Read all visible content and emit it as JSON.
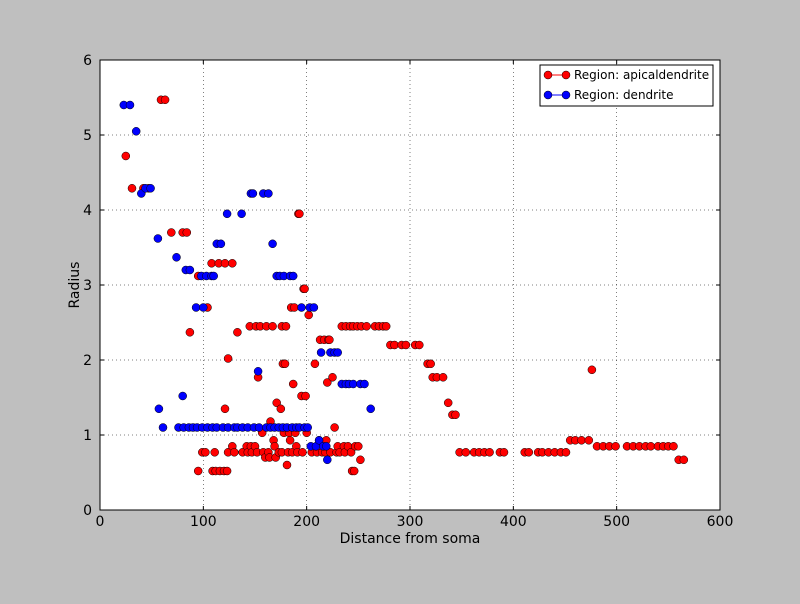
{
  "colors": {
    "figure_background": "#bfbfbf",
    "axes_background": "#ffffff",
    "apical_series": "#ff0000",
    "dendrite_series": "#0000ff",
    "marker_edge": "#000000"
  },
  "chart_data": {
    "type": "scatter",
    "title": "",
    "xlabel": "Distance from soma",
    "ylabel": "Radius",
    "xlim": [
      0,
      600
    ],
    "ylim": [
      0,
      6
    ],
    "xticks": [
      0,
      100,
      200,
      300,
      400,
      500,
      600
    ],
    "yticks": [
      0,
      1,
      2,
      3,
      4,
      5,
      6
    ],
    "grid": true,
    "legend_position": "top-right",
    "series": [
      {
        "name": "Region: apicaldendrite",
        "color": "#ff0000",
        "points": [
          [
            25,
            4.72
          ],
          [
            31,
            4.29
          ],
          [
            42,
            4.29
          ],
          [
            47,
            4.29
          ],
          [
            59,
            5.47
          ],
          [
            63,
            5.47
          ],
          [
            69,
            3.7
          ],
          [
            80,
            3.7
          ],
          [
            84,
            3.7
          ],
          [
            87,
            2.37
          ],
          [
            95,
            3.12
          ],
          [
            95,
            0.52
          ],
          [
            99,
            0.77
          ],
          [
            102,
            0.77
          ],
          [
            104,
            2.7
          ],
          [
            108,
            3.29
          ],
          [
            109,
            0.52
          ],
          [
            111,
            0.77
          ],
          [
            112,
            0.52
          ],
          [
            115,
            3.29
          ],
          [
            116,
            0.52
          ],
          [
            120,
            0.52
          ],
          [
            121,
            3.29
          ],
          [
            121,
            1.35
          ],
          [
            123,
            0.52
          ],
          [
            124,
            0.77
          ],
          [
            124,
            2.02
          ],
          [
            128,
            3.29
          ],
          [
            128,
            0.85
          ],
          [
            130,
            0.77
          ],
          [
            133,
            2.37
          ],
          [
            138,
            0.77
          ],
          [
            142,
            0.85
          ],
          [
            143,
            0.77
          ],
          [
            145,
            2.45
          ],
          [
            146,
            0.85
          ],
          [
            147,
            0.77
          ],
          [
            150,
            0.85
          ],
          [
            151,
            2.45
          ],
          [
            152,
            0.77
          ],
          [
            153,
            1.77
          ],
          [
            155,
            2.45
          ],
          [
            157,
            1.03
          ],
          [
            158,
            0.77
          ],
          [
            160,
            0.7
          ],
          [
            161,
            2.45
          ],
          [
            163,
            0.77
          ],
          [
            164,
            0.7
          ],
          [
            165,
            1.18
          ],
          [
            167,
            2.45
          ],
          [
            168,
            0.93
          ],
          [
            169,
            0.85
          ],
          [
            170,
            0.7
          ],
          [
            171,
            1.43
          ],
          [
            173,
            0.77
          ],
          [
            175,
            1.35
          ],
          [
            176,
            2.45
          ],
          [
            176,
            0.77
          ],
          [
            177,
            1.95
          ],
          [
            178,
            1.03
          ],
          [
            179,
            1.95
          ],
          [
            180,
            2.45
          ],
          [
            181,
            0.6
          ],
          [
            182,
            0.77
          ],
          [
            183,
            1.03
          ],
          [
            184,
            0.93
          ],
          [
            185,
            2.7
          ],
          [
            186,
            0.77
          ],
          [
            187,
            1.68
          ],
          [
            188,
            2.7
          ],
          [
            189,
            1.03
          ],
          [
            190,
            0.85
          ],
          [
            191,
            0.77
          ],
          [
            192,
            3.95
          ],
          [
            193,
            3.95
          ],
          [
            195,
            1.52
          ],
          [
            196,
            0.77
          ],
          [
            197,
            2.95
          ],
          [
            198,
            2.95
          ],
          [
            199,
            1.52
          ],
          [
            200,
            1.03
          ],
          [
            202,
            2.6
          ],
          [
            205,
            0.77
          ],
          [
            208,
            1.95
          ],
          [
            210,
            0.77
          ],
          [
            212,
            0.93
          ],
          [
            213,
            2.27
          ],
          [
            215,
            0.77
          ],
          [
            216,
            0.85
          ],
          [
            217,
            2.27
          ],
          [
            218,
            0.77
          ],
          [
            219,
            0.93
          ],
          [
            220,
            1.7
          ],
          [
            221,
            2.27
          ],
          [
            222,
            2.27
          ],
          [
            223,
            0.77
          ],
          [
            225,
            1.77
          ],
          [
            227,
            1.1
          ],
          [
            229,
            0.77
          ],
          [
            230,
            0.85
          ],
          [
            232,
            0.77
          ],
          [
            234,
            2.45
          ],
          [
            236,
            0.85
          ],
          [
            237,
            0.77
          ],
          [
            238,
            2.45
          ],
          [
            240,
            0.85
          ],
          [
            242,
            2.45
          ],
          [
            243,
            0.77
          ],
          [
            244,
            0.52
          ],
          [
            245,
            2.45
          ],
          [
            246,
            0.52
          ],
          [
            247,
            0.85
          ],
          [
            249,
            2.45
          ],
          [
            250,
            0.85
          ],
          [
            252,
            0.67
          ],
          [
            253,
            2.45
          ],
          [
            258,
            2.45
          ],
          [
            266,
            2.45
          ],
          [
            270,
            2.45
          ],
          [
            274,
            2.45
          ],
          [
            277,
            2.45
          ],
          [
            281,
            2.2
          ],
          [
            285,
            2.2
          ],
          [
            292,
            2.2
          ],
          [
            296,
            2.2
          ],
          [
            305,
            2.2
          ],
          [
            309,
            2.2
          ],
          [
            317,
            1.95
          ],
          [
            320,
            1.95
          ],
          [
            322,
            1.77
          ],
          [
            326,
            1.77
          ],
          [
            332,
            1.77
          ],
          [
            337,
            1.43
          ],
          [
            341,
            1.27
          ],
          [
            344,
            1.27
          ],
          [
            348,
            0.77
          ],
          [
            354,
            0.77
          ],
          [
            362,
            0.77
          ],
          [
            367,
            0.77
          ],
          [
            372,
            0.77
          ],
          [
            377,
            0.77
          ],
          [
            387,
            0.77
          ],
          [
            391,
            0.77
          ],
          [
            411,
            0.77
          ],
          [
            415,
            0.77
          ],
          [
            424,
            0.77
          ],
          [
            428,
            0.77
          ],
          [
            434,
            0.77
          ],
          [
            440,
            0.77
          ],
          [
            446,
            0.77
          ],
          [
            451,
            0.77
          ],
          [
            455,
            0.93
          ],
          [
            460,
            0.93
          ],
          [
            466,
            0.93
          ],
          [
            473,
            0.93
          ],
          [
            476,
            1.87
          ],
          [
            481,
            0.85
          ],
          [
            487,
            0.85
          ],
          [
            493,
            0.85
          ],
          [
            499,
            0.85
          ],
          [
            510,
            0.85
          ],
          [
            516,
            0.85
          ],
          [
            522,
            0.85
          ],
          [
            528,
            0.85
          ],
          [
            533,
            0.85
          ],
          [
            540,
            0.85
          ],
          [
            545,
            0.85
          ],
          [
            550,
            0.85
          ],
          [
            555,
            0.85
          ],
          [
            560,
            0.67
          ],
          [
            565,
            0.67
          ]
        ]
      },
      {
        "name": "Region: dendrite",
        "color": "#0000ff",
        "points": [
          [
            23,
            5.4
          ],
          [
            29,
            5.4
          ],
          [
            35,
            5.05
          ],
          [
            40,
            4.22
          ],
          [
            44,
            4.29
          ],
          [
            49,
            4.29
          ],
          [
            56,
            3.62
          ],
          [
            57,
            1.35
          ],
          [
            61,
            1.1
          ],
          [
            74,
            3.37
          ],
          [
            76,
            1.1
          ],
          [
            80,
            1.52
          ],
          [
            81,
            1.1
          ],
          [
            83,
            3.2
          ],
          [
            86,
            1.1
          ],
          [
            87,
            3.2
          ],
          [
            90,
            1.1
          ],
          [
            93,
            2.7
          ],
          [
            94,
            1.1
          ],
          [
            98,
            3.12
          ],
          [
            99,
            1.1
          ],
          [
            100,
            2.7
          ],
          [
            103,
            3.12
          ],
          [
            104,
            1.1
          ],
          [
            108,
            3.12
          ],
          [
            109,
            1.1
          ],
          [
            110,
            3.12
          ],
          [
            113,
            3.55
          ],
          [
            113,
            1.1
          ],
          [
            117,
            3.55
          ],
          [
            119,
            1.1
          ],
          [
            123,
            3.95
          ],
          [
            124,
            1.1
          ],
          [
            130,
            1.1
          ],
          [
            133,
            1.1
          ],
          [
            137,
            3.95
          ],
          [
            138,
            1.1
          ],
          [
            143,
            1.1
          ],
          [
            146,
            4.22
          ],
          [
            148,
            4.22
          ],
          [
            149,
            1.1
          ],
          [
            153,
            1.85
          ],
          [
            154,
            1.1
          ],
          [
            158,
            4.22
          ],
          [
            161,
            1.1
          ],
          [
            163,
            4.22
          ],
          [
            165,
            1.1
          ],
          [
            167,
            3.55
          ],
          [
            169,
            1.1
          ],
          [
            171,
            3.12
          ],
          [
            173,
            1.1
          ],
          [
            174,
            3.12
          ],
          [
            177,
            1.1
          ],
          [
            178,
            3.12
          ],
          [
            181,
            1.1
          ],
          [
            184,
            3.12
          ],
          [
            186,
            1.1
          ],
          [
            187,
            3.12
          ],
          [
            190,
            1.1
          ],
          [
            193,
            1.1
          ],
          [
            195,
            2.7
          ],
          [
            198,
            1.1
          ],
          [
            201,
            1.1
          ],
          [
            203,
            2.7
          ],
          [
            204,
            0.85
          ],
          [
            207,
            2.7
          ],
          [
            209,
            0.85
          ],
          [
            212,
            0.93
          ],
          [
            214,
            2.1
          ],
          [
            216,
            0.85
          ],
          [
            219,
            0.85
          ],
          [
            220,
            0.67
          ],
          [
            223,
            2.1
          ],
          [
            227,
            2.1
          ],
          [
            230,
            2.1
          ],
          [
            234,
            1.68
          ],
          [
            238,
            1.68
          ],
          [
            241,
            1.68
          ],
          [
            245,
            1.68
          ],
          [
            252,
            1.68
          ],
          [
            256,
            1.68
          ],
          [
            262,
            1.35
          ]
        ]
      }
    ]
  }
}
